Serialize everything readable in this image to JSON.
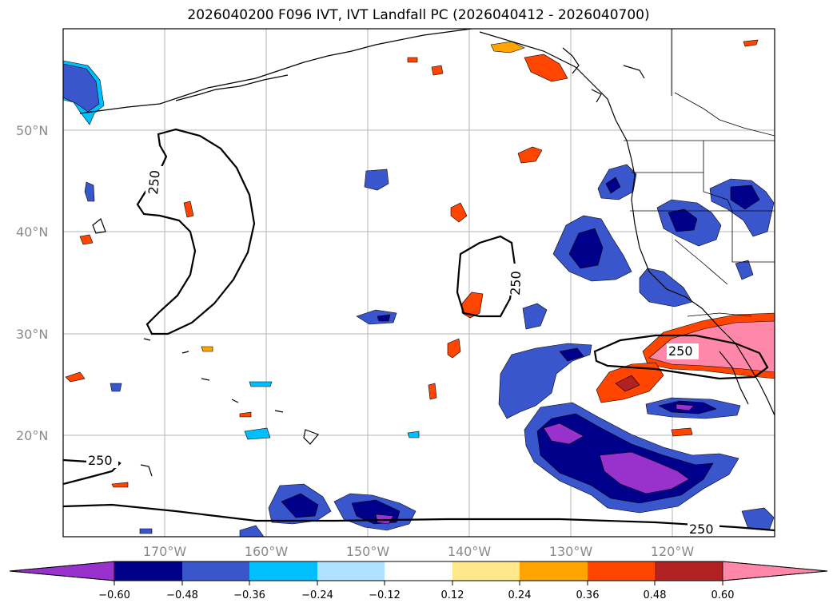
{
  "title": "2026040200 F096 IVT, IVT Landfall PC (2026040412 - 2026040700)",
  "map": {
    "lat_labels": [
      "50°N",
      "40°N",
      "30°N",
      "20°N"
    ],
    "lon_labels": [
      "170°W",
      "160°W",
      "150°W",
      "140°W",
      "130°W",
      "120°W"
    ],
    "ivt_contour_label": "250"
  },
  "colorbar": {
    "ticks": [
      "−0.60",
      "−0.48",
      "−0.36",
      "−0.24",
      "−0.12",
      "0.12",
      "0.24",
      "0.36",
      "0.48",
      "0.60"
    ],
    "colors": [
      "#9932cc",
      "#00008b",
      "#3a56cc",
      "#00bfff",
      "#b0e2ff",
      "#ffffff",
      "#ffe88a",
      "#ffa500",
      "#ff4500",
      "#b22222",
      "#ff88aa"
    ]
  }
}
